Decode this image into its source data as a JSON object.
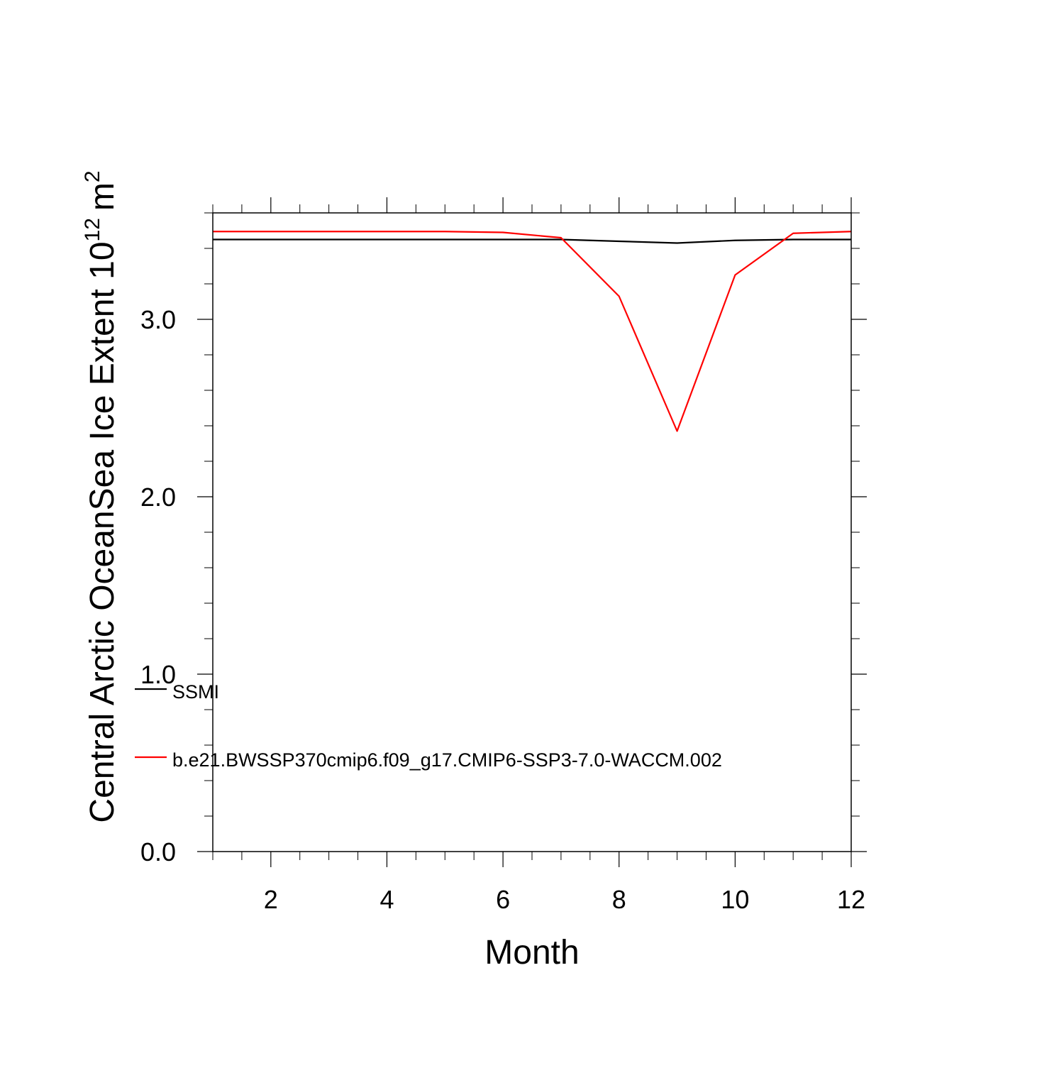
{
  "chart_data": {
    "type": "line",
    "title": "",
    "xlabel": "Month",
    "ylabel": {
      "text": "Central Arctic OceanSea Ice Extent 10",
      "exponent": "12",
      "unit": "m",
      "unit_exponent": "2"
    },
    "xlim": [
      1,
      12
    ],
    "ylim": [
      0,
      3.6
    ],
    "x_ticks": [
      2,
      4,
      6,
      8,
      10,
      12
    ],
    "x_tick_labels": [
      "2",
      "4",
      "6",
      "8",
      "10",
      "12"
    ],
    "y_ticks": [
      0,
      1,
      2,
      3
    ],
    "y_tick_labels": [
      "0.0",
      "1.0",
      "2.0",
      "3.0"
    ],
    "grid": false,
    "legend_position": "lower-left inside plot",
    "x": [
      1,
      2,
      3,
      4,
      5,
      6,
      7,
      8,
      9,
      10,
      11,
      12
    ],
    "series": [
      {
        "name": "SSMI",
        "color": "#000000",
        "values": [
          3.45,
          3.45,
          3.45,
          3.45,
          3.45,
          3.45,
          3.45,
          3.44,
          3.43,
          3.445,
          3.45,
          3.45
        ]
      },
      {
        "name": "b.e21.BWSSP370cmip6.f09_g17.CMIP6-SSP3-7.0-WACCM.002",
        "color": "#ff0000",
        "values": [
          3.495,
          3.495,
          3.495,
          3.495,
          3.495,
          3.49,
          3.46,
          3.13,
          2.37,
          3.25,
          3.485,
          3.495
        ]
      }
    ]
  }
}
